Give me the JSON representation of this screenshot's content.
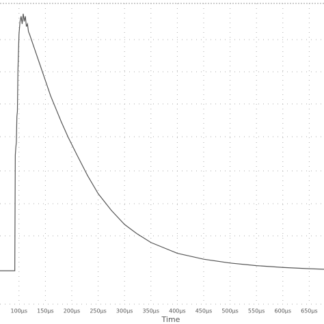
{
  "chart_data": {
    "type": "line",
    "x_label": "Time",
    "x": [
      64,
      90,
      92,
      93,
      94,
      95,
      96,
      97,
      98,
      99,
      100,
      102,
      104,
      106,
      108,
      110,
      112,
      114,
      116,
      118,
      120,
      130,
      140,
      150,
      160,
      170,
      180,
      193,
      210,
      230,
      250,
      275,
      300,
      323,
      350,
      400,
      450,
      500,
      550,
      600,
      650,
      678
    ],
    "series": [
      {
        "color": "#555555",
        "values": [
          0,
          0,
          0,
          0.45,
          0.48,
          0.5,
          0.6,
          0.62,
          0.78,
          0.85,
          0.92,
          0.97,
          0.99,
          0.96,
          1.0,
          0.97,
          0.99,
          0.95,
          0.96,
          0.93,
          0.92,
          0.86,
          0.8,
          0.74,
          0.68,
          0.63,
          0.58,
          0.52,
          0.45,
          0.37,
          0.3,
          0.235,
          0.18,
          0.145,
          0.11,
          0.068,
          0.045,
          0.03,
          0.02,
          0.013,
          0.008,
          0.006
        ]
      }
    ],
    "xlim": [
      64,
      678
    ],
    "ylim": [
      -0.13,
      1.04
    ],
    "xticks": [
      {
        "value": 100,
        "label": "100μs"
      },
      {
        "value": 150,
        "label": "150μs"
      },
      {
        "value": 200,
        "label": "200μs"
      },
      {
        "value": 250,
        "label": "250μs"
      },
      {
        "value": 300,
        "label": "300μs"
      },
      {
        "value": 350,
        "label": "350μs"
      },
      {
        "value": 400,
        "label": "400μs"
      },
      {
        "value": 450,
        "label": "450μs"
      },
      {
        "value": 500,
        "label": "500μs"
      },
      {
        "value": 550,
        "label": "550μs"
      },
      {
        "value": 600,
        "label": "600μs"
      },
      {
        "value": 650,
        "label": "650μs"
      }
    ],
    "grid": true
  }
}
